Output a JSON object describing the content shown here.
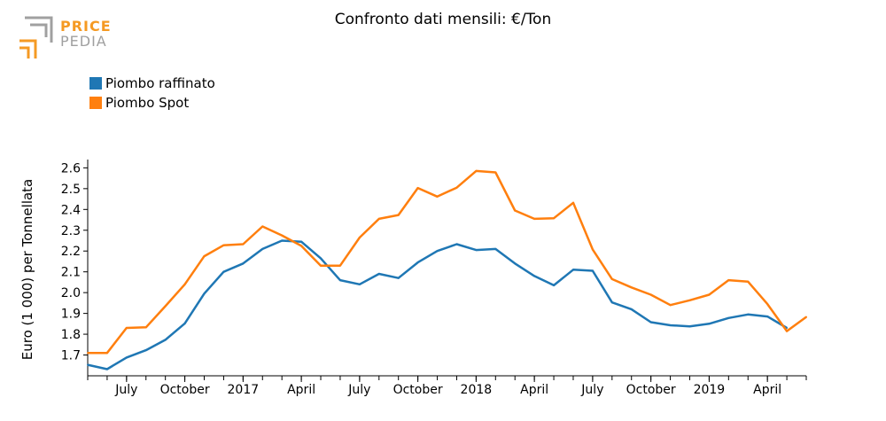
{
  "logo": {
    "line1": "PRICE",
    "line2": "PEDIA",
    "colors": {
      "orange": "#f59a23",
      "gray": "#a0a0a0"
    }
  },
  "chart_data": {
    "type": "line",
    "title": "Confronto dati mensili: €/Ton",
    "ylabel": "Euro (1 000) per Tonnellata",
    "xlabel": "",
    "ylim": [
      1.6,
      2.64
    ],
    "yticks": [
      1.7,
      1.8,
      1.9,
      2.0,
      2.1,
      2.2,
      2.3,
      2.4,
      2.5,
      2.6
    ],
    "ytick_labels": [
      "1.7",
      "1.8",
      "1.9",
      "2.0",
      "2.1",
      "2.2",
      "2.3",
      "2.4",
      "2.5",
      "2.6"
    ],
    "x": [
      "2016-05",
      "2016-06",
      "2016-07",
      "2016-08",
      "2016-09",
      "2016-10",
      "2016-11",
      "2016-12",
      "2017-01",
      "2017-02",
      "2017-03",
      "2017-04",
      "2017-05",
      "2017-06",
      "2017-07",
      "2017-08",
      "2017-09",
      "2017-10",
      "2017-11",
      "2017-12",
      "2018-01",
      "2018-02",
      "2018-03",
      "2018-04",
      "2018-05",
      "2018-06",
      "2018-07",
      "2018-08",
      "2018-09",
      "2018-10",
      "2018-11",
      "2018-12",
      "2019-01",
      "2019-02",
      "2019-03",
      "2019-04",
      "2019-05",
      "2019-06"
    ],
    "xticks": [
      {
        "x": "2016-07",
        "label": "July"
      },
      {
        "x": "2016-10",
        "label": "October"
      },
      {
        "x": "2017-01",
        "label": "2017"
      },
      {
        "x": "2017-04",
        "label": "April"
      },
      {
        "x": "2017-07",
        "label": "July"
      },
      {
        "x": "2017-10",
        "label": "October"
      },
      {
        "x": "2018-01",
        "label": "2018"
      },
      {
        "x": "2018-04",
        "label": "April"
      },
      {
        "x": "2018-07",
        "label": "July"
      },
      {
        "x": "2018-10",
        "label": "October"
      },
      {
        "x": "2019-01",
        "label": "2019"
      },
      {
        "x": "2019-04",
        "label": "April"
      }
    ],
    "series": [
      {
        "name": "Piombo raffinato",
        "color": "#1f77b4",
        "values": [
          1.653,
          1.632,
          1.688,
          1.723,
          1.773,
          1.852,
          1.995,
          2.1,
          2.14,
          2.21,
          2.25,
          2.245,
          2.165,
          2.06,
          2.04,
          2.09,
          2.07,
          2.145,
          2.2,
          2.233,
          2.205,
          2.21,
          2.14,
          2.08,
          2.035,
          2.11,
          2.105,
          1.953,
          1.92,
          1.858,
          1.843,
          1.838,
          1.85,
          1.878,
          1.895,
          1.885,
          1.83,
          null
        ]
      },
      {
        "name": "Piombo Spot",
        "color": "#ff7f0e",
        "values": [
          1.71,
          1.71,
          1.83,
          1.833,
          1.935,
          2.04,
          2.175,
          2.228,
          2.233,
          2.318,
          2.275,
          2.225,
          2.13,
          2.13,
          2.265,
          2.355,
          2.373,
          2.503,
          2.462,
          2.505,
          2.585,
          2.578,
          2.395,
          2.355,
          2.358,
          2.432,
          2.208,
          2.065,
          2.025,
          1.99,
          1.94,
          1.963,
          1.99,
          2.06,
          2.053,
          1.945,
          1.815,
          1.883
        ]
      }
    ],
    "grid": false,
    "legend_position": "top-left"
  }
}
